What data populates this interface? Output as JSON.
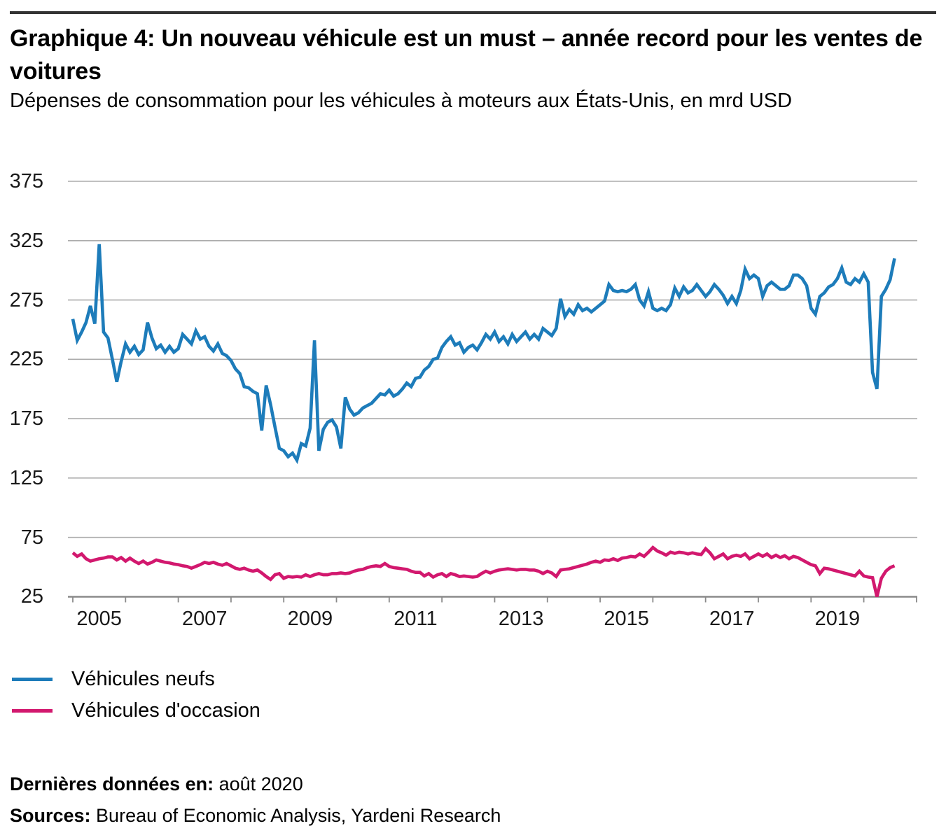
{
  "header": {
    "title": "Graphique 4: Un nouveau véhicule est un must – année record pour les ventes de voitures",
    "subtitle": "Dépenses de consommation pour les véhicules à moteurs aux États-Unis, en mrd USD"
  },
  "legend": [
    {
      "label": "Véhicules neufs",
      "color": "#1d7cba"
    },
    {
      "label": "Véhicules d'occasion",
      "color": "#d2186e"
    }
  ],
  "footer": {
    "last_data_label": "Dernières données en:",
    "last_data_value": " août 2020",
    "sources_label": "Sources:",
    "sources_value": " Bureau of Economic Analysis, Yardeni Research"
  },
  "chart_data": {
    "type": "line",
    "title": "Graphique 4: Un nouveau véhicule est un must – année record pour les ventes de voitures",
    "subtitle": "Dépenses de consommation pour les véhicules à moteurs aux États-Unis, en mrd USD",
    "unit": "mrd USD",
    "x_start": "2005-01",
    "x_end": "2020-08",
    "frequency": "monthly",
    "x_tick_label_years": [
      2005,
      2007,
      2009,
      2011,
      2013,
      2015,
      2017,
      2019
    ],
    "x_axis_year_range": [
      2005,
      2021
    ],
    "y_ticks": [
      375,
      325,
      275,
      225,
      175,
      125,
      75,
      25
    ],
    "ylim": [
      25,
      375
    ],
    "grid": "horizontal",
    "legend_position": "below",
    "colors": {
      "grid": "#ababab",
      "axis": "#8a8a8a",
      "new_vehicles": "#1d7cba",
      "used_vehicles": "#d2186e"
    },
    "series": [
      {
        "name": "Véhicules neufs",
        "color": "#1d7cba",
        "values": [
          259,
          241,
          248,
          256,
          270,
          255,
          322,
          248,
          243,
          225,
          206,
          223,
          238,
          231,
          236,
          229,
          233,
          256,
          243,
          234,
          237,
          231,
          236,
          231,
          234,
          246,
          242,
          238,
          249,
          242,
          244,
          236,
          232,
          238,
          230,
          228,
          224,
          217,
          213,
          202,
          201,
          198,
          196,
          165,
          203,
          187,
          168,
          150,
          148,
          143,
          146,
          140,
          154,
          152,
          167,
          241,
          148,
          166,
          172,
          174,
          168,
          150,
          193,
          183,
          178,
          180,
          184,
          186,
          188,
          192,
          196,
          195,
          199,
          194,
          196,
          200,
          205,
          202,
          209,
          210,
          216,
          219,
          225,
          226,
          235,
          240,
          244,
          237,
          239,
          231,
          235,
          237,
          233,
          239,
          246,
          242,
          248,
          240,
          244,
          238,
          246,
          240,
          244,
          248,
          242,
          246,
          242,
          251,
          248,
          245,
          251,
          276,
          261,
          267,
          263,
          271,
          266,
          268,
          265,
          268,
          271,
          274,
          288,
          283,
          282,
          283,
          282,
          284,
          288,
          275,
          270,
          282,
          268,
          266,
          268,
          266,
          271,
          285,
          278,
          286,
          281,
          283,
          288,
          283,
          278,
          282,
          288,
          284,
          279,
          272,
          278,
          272,
          283,
          301,
          293,
          296,
          293,
          278,
          287,
          290,
          287,
          284,
          284,
          287,
          296,
          296,
          293,
          287,
          268,
          263,
          278,
          281,
          286,
          288,
          293,
          302,
          290,
          288,
          293,
          290,
          297,
          290,
          214,
          200,
          278,
          284,
          292,
          310
        ]
      },
      {
        "name": "Véhicules d'occasion",
        "color": "#d2186e",
        "values": [
          62,
          59,
          61,
          57,
          55,
          56,
          57,
          57.5,
          58.5,
          58.5,
          56,
          58,
          55,
          57.5,
          55,
          53,
          55,
          52.5,
          54,
          56,
          55,
          54,
          53.5,
          52.5,
          52,
          51,
          50.5,
          49,
          50.5,
          52,
          54,
          53,
          54,
          52.5,
          51.5,
          53,
          51,
          49,
          48,
          49,
          47.5,
          46.5,
          47.5,
          45,
          42,
          39.5,
          43.5,
          44.5,
          40.5,
          42,
          41.5,
          42,
          41.5,
          43.5,
          42,
          43.5,
          44.5,
          43.5,
          43.5,
          44.5,
          44.5,
          45,
          44.5,
          45,
          46.5,
          47.5,
          48,
          49.5,
          50.5,
          51,
          50.5,
          53,
          50.5,
          49.5,
          49,
          48.5,
          48,
          46.5,
          45.5,
          45.5,
          42.5,
          44.5,
          41.5,
          43.5,
          44.5,
          42,
          44.5,
          43.5,
          42,
          42.5,
          42,
          41.5,
          42,
          44.5,
          46.5,
          45,
          46.5,
          47.5,
          48,
          48.5,
          48,
          47.5,
          48,
          48,
          47.5,
          47.5,
          46.5,
          44.5,
          46.5,
          45,
          42,
          47.5,
          48,
          48.5,
          49.5,
          50.5,
          51.5,
          52.5,
          54,
          55,
          54,
          56,
          55.5,
          57,
          55.5,
          57.5,
          58,
          59,
          58.5,
          61,
          59,
          62.5,
          66.5,
          63.5,
          62,
          60,
          62.5,
          61.5,
          62.5,
          62,
          61,
          62,
          61,
          60.5,
          65.5,
          62,
          57,
          59,
          61,
          57,
          59,
          60,
          59,
          61,
          57,
          59,
          61,
          59,
          61,
          58,
          60,
          58,
          59.5,
          57,
          59,
          58,
          56,
          54,
          52,
          51,
          44.5,
          49,
          48.5,
          47.5,
          46.5,
          45.5,
          44.5,
          43.5,
          42.5,
          46.5,
          42.5,
          41.5,
          41,
          25,
          40.5,
          46.5,
          49.5,
          51
        ]
      }
    ]
  }
}
